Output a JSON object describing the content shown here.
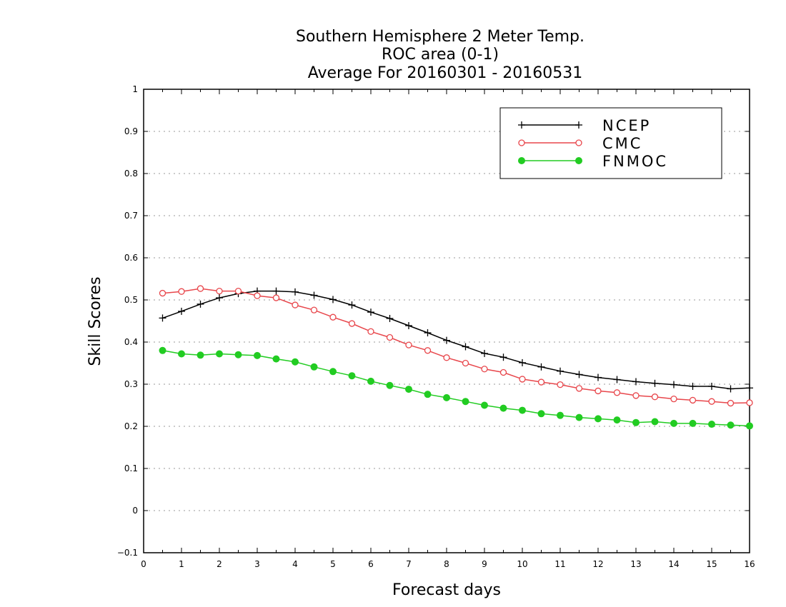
{
  "chart_data": {
    "type": "line",
    "title": [
      "Southern Hemisphere 2 Meter Temp.",
      "ROC area (0-1)",
      "Average For 20160301 - 20160531"
    ],
    "xlabel": "Forecast days",
    "ylabel": "Skill Scores",
    "xlim": [
      0,
      16
    ],
    "ylim": [
      -0.1,
      1
    ],
    "xticks": [
      0,
      1,
      2,
      3,
      4,
      5,
      6,
      7,
      8,
      9,
      10,
      11,
      12,
      13,
      14,
      15,
      16
    ],
    "xtick_labels": [
      "0",
      "1",
      "2",
      "3",
      "4",
      "5",
      "6",
      "7",
      "8",
      "9",
      "10",
      "11",
      "12",
      "13",
      "14",
      "15",
      "16"
    ],
    "yticks": [
      -0.1,
      0,
      0.1,
      0.2,
      0.3,
      0.4,
      0.5,
      0.6,
      0.7,
      0.8,
      0.9,
      1
    ],
    "ytick_labels": [
      "−0.1",
      "0",
      "0.1",
      "0.2",
      "0.3",
      "0.4",
      "0.5",
      "0.6",
      "0.7",
      "0.8",
      "0.9",
      "1"
    ],
    "grid": "horizontal dotted",
    "legend_position": "top-right",
    "x": [
      0.5,
      1,
      1.5,
      2,
      2.5,
      3,
      3.5,
      4,
      4.5,
      5,
      5.5,
      6,
      6.5,
      7,
      7.5,
      8,
      8.5,
      9,
      9.5,
      10,
      10.5,
      11,
      11.5,
      12,
      12.5,
      13,
      13.5,
      14,
      14.5,
      15,
      15.5,
      16
    ],
    "series": [
      {
        "name": "NCEP",
        "color": "#000000",
        "marker": "plus",
        "values": [
          0.457,
          0.473,
          0.49,
          0.505,
          0.515,
          0.521,
          0.521,
          0.519,
          0.511,
          0.501,
          0.488,
          0.471,
          0.456,
          0.439,
          0.422,
          0.404,
          0.389,
          0.373,
          0.364,
          0.351,
          0.341,
          0.331,
          0.323,
          0.316,
          0.311,
          0.306,
          0.302,
          0.299,
          0.295,
          0.295,
          0.289,
          0.291
        ]
      },
      {
        "name": "CMC",
        "color": "#e8464b",
        "marker": "open-circle",
        "values": [
          0.516,
          0.52,
          0.527,
          0.521,
          0.521,
          0.51,
          0.505,
          0.488,
          0.476,
          0.459,
          0.444,
          0.425,
          0.411,
          0.393,
          0.38,
          0.363,
          0.35,
          0.336,
          0.328,
          0.312,
          0.305,
          0.299,
          0.29,
          0.284,
          0.28,
          0.273,
          0.27,
          0.265,
          0.262,
          0.259,
          0.255,
          0.256
        ]
      },
      {
        "name": "FNMOC",
        "color": "#22cc22",
        "marker": "filled-circle",
        "values": [
          0.38,
          0.372,
          0.369,
          0.372,
          0.37,
          0.368,
          0.36,
          0.353,
          0.341,
          0.33,
          0.32,
          0.307,
          0.297,
          0.288,
          0.276,
          0.268,
          0.259,
          0.25,
          0.243,
          0.238,
          0.23,
          0.226,
          0.221,
          0.218,
          0.215,
          0.209,
          0.211,
          0.207,
          0.207,
          0.205,
          0.203,
          0.201
        ]
      }
    ]
  }
}
